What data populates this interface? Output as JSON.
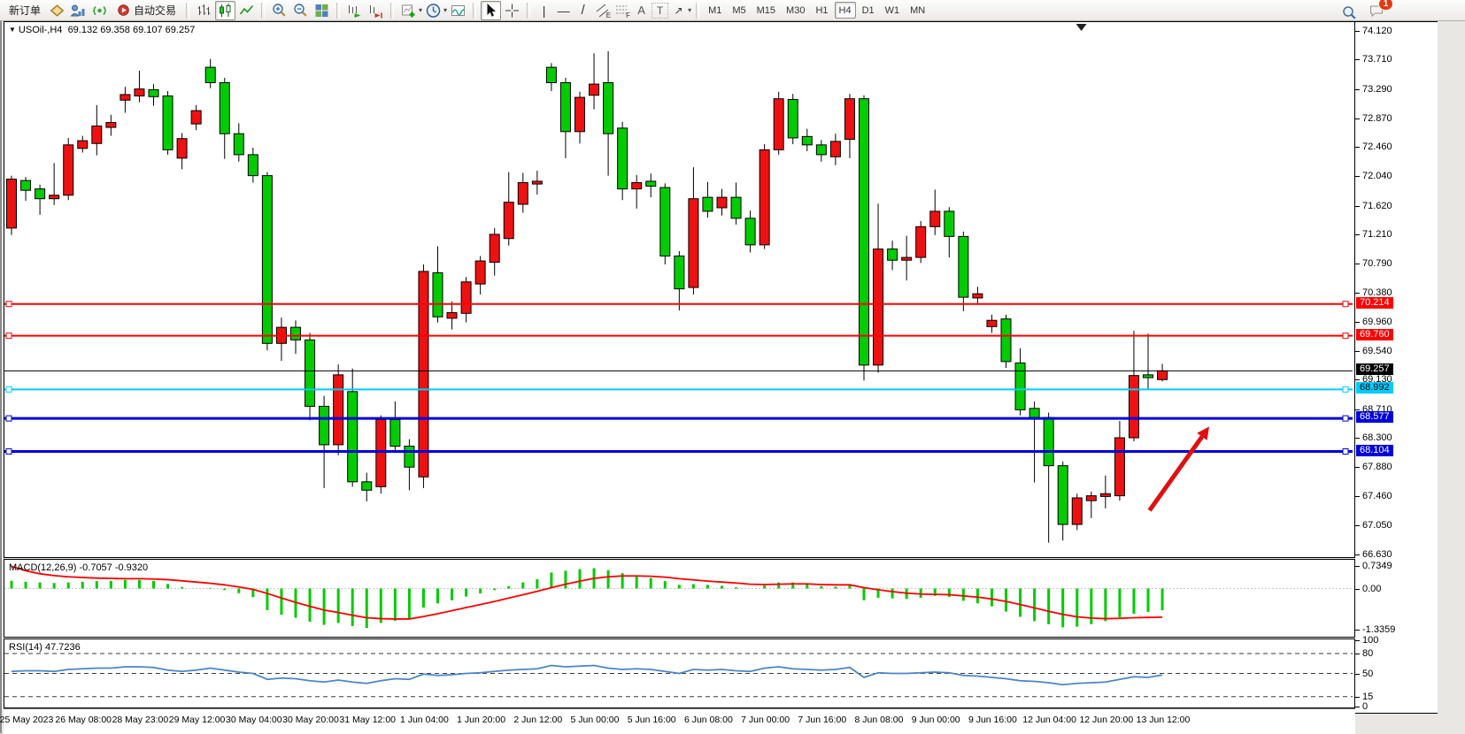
{
  "toolbar": {
    "new_order_label": "新订单",
    "auto_trading_label": "自动交易",
    "timeframes": [
      "M1",
      "M5",
      "M15",
      "M30",
      "H1",
      "H4",
      "D1",
      "W1",
      "MN"
    ],
    "active_timeframe": "H4",
    "notification_badge": "1"
  },
  "icons": {
    "dropdown": "▼",
    "caret": "▾",
    "vline": "|",
    "hline": "—",
    "trendline": "/",
    "channel_letter": "E",
    "fibo_letter": "F",
    "text_tool": "A",
    "label_tool": "T",
    "arrows_tool": "↗"
  },
  "chart": {
    "title": "USOil-,H4",
    "ohlc": "69.132 69.358 69.107 69.257"
  },
  "macd": {
    "label": "MACD(12,26,9)",
    "values": "-0.7057 -0.9320",
    "scale": [
      "0.7349",
      "0.00",
      "-1.3359"
    ]
  },
  "rsi": {
    "label": "RSI(14)",
    "value": "47.7236",
    "scale": [
      "100",
      "80",
      "50",
      "15",
      "0"
    ]
  },
  "price_scale": {
    "ticks": [
      "74.120",
      "73.710",
      "73.290",
      "72.870",
      "72.460",
      "72.040",
      "71.620",
      "71.210",
      "70.790",
      "70.380",
      "69.960",
      "69.540",
      "69.130",
      "68.710",
      "68.300",
      "67.880",
      "67.460",
      "67.050",
      "66.630"
    ],
    "badges": [
      {
        "text": "70.214",
        "price": 70.214,
        "bg": "#ff0000",
        "fg": "#ffffff"
      },
      {
        "text": "69.760",
        "price": 69.76,
        "bg": "#ff0000",
        "fg": "#ffffff"
      },
      {
        "text": "69.257",
        "price": 69.257,
        "bg": "#000000",
        "fg": "#ffffff"
      },
      {
        "text": "68.992",
        "price": 68.992,
        "bg": "#00ccff",
        "fg": "#000000"
      },
      {
        "text": "68.577",
        "price": 68.577,
        "bg": "#0000dd",
        "fg": "#ffffff"
      },
      {
        "text": "68.104",
        "price": 68.104,
        "bg": "#0000dd",
        "fg": "#ffffff"
      }
    ]
  },
  "time_axis": [
    "25 May 2023",
    "26 May 08:00",
    "28 May 23:00",
    "29 May 12:00",
    "30 May 04:00",
    "30 May 20:00",
    "31 May 12:00",
    "1 Jun 04:00",
    "1 Jun 20:00",
    "2 Jun 12:00",
    "5 Jun 00:00",
    "5 Jun 16:00",
    "6 Jun 08:00",
    "7 Jun 00:00",
    "7 Jun 16:00",
    "8 Jun 08:00",
    "9 Jun 00:00",
    "9 Jun 16:00",
    "12 Jun 04:00",
    "12 Jun 20:00",
    "13 Jun 12:00"
  ],
  "chart_data": {
    "type": "candlestick",
    "symbol": "USOil-",
    "timeframe": "H4",
    "current_ohlc": {
      "open": 69.132,
      "high": 69.358,
      "low": 69.107,
      "close": 69.257
    },
    "ylim": [
      66.592,
      74.247
    ],
    "bull_color": "#ee1111",
    "bear_color": "#00cc00",
    "wick_color": "#000000",
    "candles": [
      [
        71.3,
        72.05,
        71.2,
        72.0
      ],
      [
        71.98,
        72.03,
        71.69,
        71.84
      ],
      [
        71.86,
        71.92,
        71.49,
        71.72
      ],
      [
        71.72,
        72.23,
        71.63,
        71.77
      ],
      [
        71.77,
        72.59,
        71.7,
        72.49
      ],
      [
        72.44,
        72.62,
        72.38,
        72.55
      ],
      [
        72.51,
        73.06,
        72.34,
        72.76
      ],
      [
        72.74,
        72.92,
        72.62,
        72.81
      ],
      [
        73.13,
        73.32,
        72.95,
        73.21
      ],
      [
        73.19,
        73.55,
        73.1,
        73.29
      ],
      [
        73.28,
        73.36,
        73.05,
        73.18
      ],
      [
        73.19,
        73.26,
        72.35,
        72.42
      ],
      [
        72.3,
        72.66,
        72.14,
        72.58
      ],
      [
        72.79,
        73.06,
        72.7,
        72.98
      ],
      [
        73.6,
        73.72,
        73.3,
        73.38
      ],
      [
        73.38,
        73.45,
        72.29,
        72.65
      ],
      [
        72.65,
        72.8,
        72.25,
        72.35
      ],
      [
        72.35,
        72.45,
        71.95,
        72.05
      ],
      [
        72.05,
        72.1,
        69.55,
        69.65
      ],
      [
        69.65,
        70.02,
        69.4,
        69.88
      ],
      [
        69.88,
        69.98,
        69.5,
        69.7
      ],
      [
        69.7,
        69.8,
        68.55,
        68.75
      ],
      [
        68.75,
        68.9,
        67.58,
        68.2
      ],
      [
        68.2,
        69.35,
        68.05,
        69.2
      ],
      [
        68.96,
        69.29,
        67.6,
        67.67
      ],
      [
        67.67,
        67.8,
        67.39,
        67.55
      ],
      [
        67.6,
        68.62,
        67.5,
        68.56
      ],
      [
        68.56,
        68.82,
        68.1,
        68.18
      ],
      [
        68.18,
        68.28,
        67.55,
        67.88
      ],
      [
        67.74,
        70.78,
        67.58,
        70.68
      ],
      [
        70.66,
        71.04,
        69.95,
        70.03
      ],
      [
        70.01,
        70.25,
        69.85,
        70.09
      ],
      [
        70.08,
        70.6,
        69.95,
        70.53
      ],
      [
        70.5,
        70.9,
        70.35,
        70.83
      ],
      [
        70.81,
        71.3,
        70.62,
        71.21
      ],
      [
        71.15,
        72.1,
        71.05,
        71.67
      ],
      [
        71.64,
        72.09,
        71.52,
        71.95
      ],
      [
        71.93,
        72.12,
        71.78,
        71.97
      ],
      [
        73.6,
        73.66,
        73.26,
        73.38
      ],
      [
        73.38,
        73.45,
        72.3,
        72.68
      ],
      [
        72.68,
        73.25,
        72.51,
        73.17
      ],
      [
        73.2,
        73.8,
        73.0,
        73.36
      ],
      [
        73.38,
        73.83,
        72.05,
        72.65
      ],
      [
        72.73,
        72.82,
        71.7,
        71.86
      ],
      [
        71.86,
        72.06,
        71.58,
        71.95
      ],
      [
        71.97,
        72.08,
        71.74,
        71.9
      ],
      [
        71.88,
        71.94,
        70.78,
        70.9
      ],
      [
        70.9,
        70.97,
        70.12,
        70.43
      ],
      [
        70.45,
        72.17,
        70.35,
        71.72
      ],
      [
        71.74,
        71.96,
        71.45,
        71.54
      ],
      [
        71.59,
        71.86,
        71.48,
        71.74
      ],
      [
        71.74,
        71.95,
        71.35,
        71.44
      ],
      [
        71.44,
        71.55,
        70.95,
        71.06
      ],
      [
        71.06,
        72.5,
        71.0,
        72.42
      ],
      [
        72.42,
        73.25,
        72.35,
        73.15
      ],
      [
        73.14,
        73.22,
        72.5,
        72.59
      ],
      [
        72.61,
        72.72,
        72.4,
        72.49
      ],
      [
        72.49,
        72.56,
        72.25,
        72.35
      ],
      [
        72.32,
        72.65,
        72.2,
        72.54
      ],
      [
        72.57,
        73.22,
        72.3,
        73.15
      ],
      [
        73.15,
        73.2,
        69.12,
        69.34
      ],
      [
        69.34,
        71.65,
        69.23,
        71.0
      ],
      [
        71.0,
        71.12,
        70.7,
        70.84
      ],
      [
        70.84,
        71.19,
        70.55,
        70.88
      ],
      [
        70.88,
        71.4,
        70.8,
        71.32
      ],
      [
        71.32,
        71.85,
        71.2,
        71.54
      ],
      [
        71.54,
        71.6,
        70.88,
        71.18
      ],
      [
        71.18,
        71.25,
        70.11,
        70.31
      ],
      [
        70.3,
        70.46,
        70.2,
        70.36
      ],
      [
        69.89,
        70.06,
        69.8,
        69.98
      ],
      [
        70.0,
        70.06,
        69.3,
        69.39
      ],
      [
        69.37,
        69.58,
        68.62,
        68.7
      ],
      [
        68.72,
        68.82,
        67.66,
        68.59
      ],
      [
        68.59,
        68.66,
        66.8,
        67.9
      ],
      [
        67.9,
        67.96,
        66.83,
        67.06
      ],
      [
        67.06,
        67.5,
        66.98,
        67.44
      ],
      [
        67.4,
        67.53,
        67.15,
        67.47
      ],
      [
        67.46,
        67.76,
        67.29,
        67.5
      ],
      [
        67.47,
        68.54,
        67.4,
        68.3
      ],
      [
        68.3,
        69.83,
        68.25,
        69.19
      ],
      [
        69.2,
        69.79,
        69.0,
        69.16
      ],
      [
        69.132,
        69.358,
        69.107,
        69.257
      ]
    ],
    "horizontal_lines": [
      {
        "price": 70.214,
        "color": "#ff0000",
        "width": 2,
        "squares": true
      },
      {
        "price": 69.76,
        "color": "#ff0000",
        "width": 2,
        "squares": true
      },
      {
        "price": 69.257,
        "color": "#000000",
        "width": 1,
        "squares": false
      },
      {
        "price": 68.992,
        "color": "#00ccff",
        "width": 2,
        "squares": true
      },
      {
        "price": 68.577,
        "color": "#0000dd",
        "width": 3,
        "squares": true
      },
      {
        "price": 68.104,
        "color": "#0000dd",
        "width": 3,
        "squares": true
      }
    ],
    "arrow_annotation": {
      "from_bar": 80.1,
      "from_price": 67.26,
      "to_bar": 84.3,
      "to_price": 68.46,
      "color": "#e01010"
    },
    "shift_marker_bar": 75.3,
    "macd": {
      "ylim": [
        -1.567,
        0.935
      ],
      "hist_color": "#00cc00",
      "signal_color": "#ff0000",
      "histogram": [
        0.25,
        0.22,
        0.2,
        0.18,
        0.2,
        0.22,
        0.24,
        0.25,
        0.28,
        0.28,
        0.25,
        0.15,
        0.05,
        0.0,
        0.02,
        -0.05,
        -0.15,
        -0.28,
        -0.7,
        -0.85,
        -0.95,
        -1.08,
        -1.18,
        -1.12,
        -1.22,
        -1.28,
        -1.12,
        -1.05,
        -1.0,
        -0.62,
        -0.48,
        -0.38,
        -0.26,
        -0.16,
        -0.05,
        0.08,
        0.2,
        0.3,
        0.52,
        0.58,
        0.63,
        0.66,
        0.6,
        0.5,
        0.42,
        0.34,
        0.24,
        0.12,
        0.14,
        0.12,
        0.09,
        0.04,
        0.0,
        0.1,
        0.2,
        0.2,
        0.14,
        0.08,
        0.06,
        0.14,
        -0.38,
        -0.3,
        -0.32,
        -0.34,
        -0.3,
        -0.24,
        -0.27,
        -0.4,
        -0.48,
        -0.58,
        -0.75,
        -0.92,
        -1.06,
        -1.16,
        -1.26,
        -1.24,
        -1.16,
        -1.06,
        -0.94,
        -0.82,
        -0.76,
        -0.7057
      ],
      "signal": [
        0.72,
        0.58,
        0.48,
        0.42,
        0.38,
        0.36,
        0.34,
        0.33,
        0.32,
        0.32,
        0.31,
        0.29,
        0.25,
        0.21,
        0.17,
        0.12,
        0.05,
        -0.03,
        -0.16,
        -0.31,
        -0.45,
        -0.58,
        -0.7,
        -0.78,
        -0.87,
        -0.95,
        -0.98,
        -0.99,
        -0.99,
        -0.91,
        -0.82,
        -0.72,
        -0.62,
        -0.52,
        -0.42,
        -0.31,
        -0.2,
        -0.09,
        0.03,
        0.14,
        0.24,
        0.33,
        0.38,
        0.41,
        0.41,
        0.4,
        0.37,
        0.32,
        0.28,
        0.24,
        0.21,
        0.18,
        0.14,
        0.13,
        0.14,
        0.15,
        0.15,
        0.13,
        0.12,
        0.12,
        0.03,
        -0.04,
        -0.1,
        -0.15,
        -0.18,
        -0.19,
        -0.2,
        -0.24,
        -0.28,
        -0.34,
        -0.42,
        -0.52,
        -0.63,
        -0.74,
        -0.84,
        -0.92,
        -0.96,
        -0.98,
        -0.97,
        -0.95,
        -0.94,
        -0.932
      ]
    },
    "rsi": {
      "ylim": [
        0,
        100
      ],
      "levels": [
        80,
        50,
        15
      ],
      "line_color": "#4a86c8",
      "values": [
        53,
        54,
        54,
        53,
        56,
        57,
        58,
        58,
        60,
        60,
        59,
        55,
        53,
        55,
        58,
        55,
        52,
        50,
        41,
        43,
        42,
        39,
        37,
        40,
        37,
        35,
        39,
        42,
        41,
        49,
        47,
        48,
        50,
        51,
        53,
        55,
        56,
        57,
        62,
        60,
        61,
        62,
        58,
        56,
        57,
        56,
        53,
        50,
        56,
        55,
        56,
        54,
        53,
        58,
        60,
        57,
        56,
        55,
        56,
        59,
        44,
        51,
        50,
        50,
        51,
        52,
        51,
        47,
        46,
        44,
        42,
        39,
        38,
        36,
        33,
        35,
        36,
        37,
        41,
        45,
        44,
        47.7
      ]
    }
  }
}
